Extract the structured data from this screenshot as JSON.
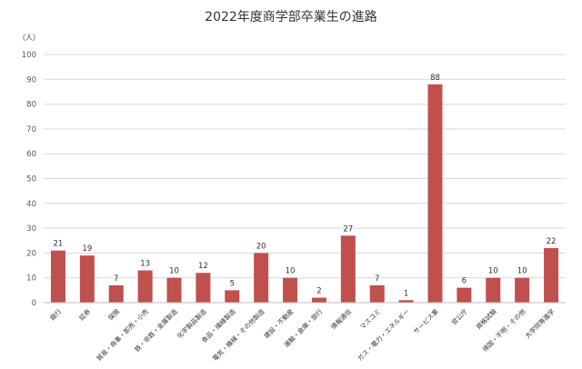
{
  "chart_data": {
    "type": "bar",
    "title": "2022年度商学部卒業生の進路",
    "ylabel": "（人）",
    "xlabel": "",
    "ylim": [
      0,
      100
    ],
    "yticks": [
      0,
      10,
      20,
      30,
      40,
      50,
      60,
      70,
      80,
      90,
      100
    ],
    "grid": true,
    "legend": "none",
    "bar_color": "#c0504d",
    "categories": [
      "銀行",
      "証券",
      "保険",
      "貿易・商事・卸売・小売",
      "鉄・非鉄・金属製造",
      "化学製品製造",
      "食品・繊維製造",
      "電気・機械・その他製造",
      "建設・不動産",
      "運輸・倉庫・旅行",
      "情報通信",
      "マスコミ",
      "ガス・電力・エネルギー",
      "サービス業",
      "官公庁",
      "資格試験",
      "帰国・不明・その他",
      "大学院等進学"
    ],
    "values": [
      21,
      19,
      7,
      13,
      10,
      12,
      5,
      20,
      10,
      2,
      27,
      7,
      1,
      88,
      6,
      10,
      10,
      22
    ]
  }
}
